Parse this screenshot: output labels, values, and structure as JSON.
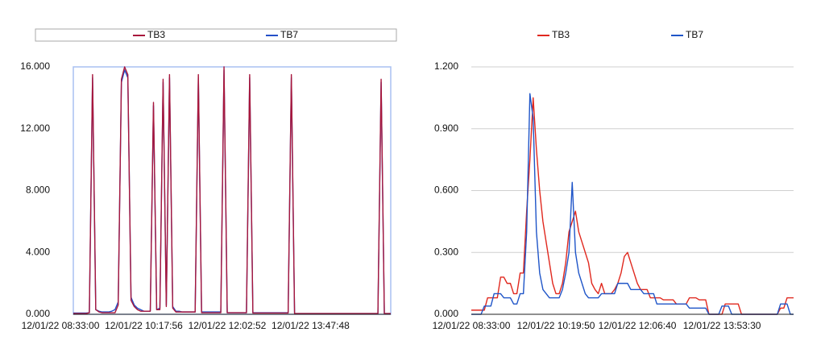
{
  "chart_data": [
    {
      "type": "line",
      "grid": false,
      "frame": true,
      "legend": "top",
      "categories": [
        "12/01/22 08:33:00",
        null,
        null,
        null,
        null,
        null,
        null,
        null,
        null,
        null,
        null,
        null,
        null,
        null,
        null,
        null,
        null,
        null,
        null,
        null,
        null,
        null,
        null,
        null,
        null,
        null,
        "12/01/22 10:17:56",
        null,
        null,
        null,
        null,
        null,
        null,
        null,
        null,
        null,
        null,
        null,
        null,
        null,
        null,
        null,
        null,
        null,
        null,
        null,
        null,
        null,
        null,
        null,
        null,
        null,
        "12/01/22 12:02:52",
        null,
        null,
        null,
        null,
        null,
        null,
        null,
        null,
        null,
        null,
        null,
        null,
        null,
        null,
        null,
        null,
        null,
        null,
        null,
        null,
        null,
        null,
        null,
        null,
        null,
        "12/01/22 13:47:48",
        null,
        null,
        null,
        null,
        null,
        null,
        null,
        null,
        null,
        null,
        null,
        null,
        null,
        null,
        null,
        null,
        null,
        null,
        null,
        null,
        null
      ],
      "ylim": [
        0,
        16
      ],
      "yticks": [
        {
          "value": 0,
          "label": "0.000"
        },
        {
          "value": 4,
          "label": "4.000"
        },
        {
          "value": 8,
          "label": "8.000"
        },
        {
          "value": 12,
          "label": "12.000"
        },
        {
          "value": 16,
          "label": "16.000"
        }
      ],
      "series": [
        {
          "name": "TB7",
          "color": "#2450c8",
          "values": [
            0.08,
            0.08,
            0.08,
            0.08,
            0.08,
            0.1,
            15.3,
            0.3,
            0.2,
            0.15,
            0.15,
            0.15,
            0.2,
            0.3,
            0.8,
            15,
            15.8,
            15.3,
            1.1,
            0.6,
            0.4,
            0.3,
            0.2,
            0.2,
            0.2,
            13.5,
            0.3,
            0.4,
            15,
            0.6,
            15.3,
            0.5,
            0.2,
            0.2,
            0.15,
            0.15,
            0.15,
            0.15,
            0.15,
            15.3,
            0.15,
            0.15,
            0.15,
            0.15,
            0.15,
            0.15,
            0.15,
            15.8,
            0.1,
            0.1,
            0.1,
            0.1,
            0.1,
            0.1,
            0.1,
            15.3,
            0.1,
            0.1,
            0.1,
            0.1,
            0.1,
            0.1,
            0.1,
            0.1,
            0.1,
            0.1,
            0.1,
            0.1,
            15.3,
            0.05,
            0.05,
            0.05,
            0.05,
            0.05,
            0.05,
            0.05,
            0.05,
            0.05,
            0.05,
            0.05,
            0.05,
            0.05,
            0.05,
            0.05,
            0.05,
            0.05,
            0.05,
            0.05,
            0.05,
            0.05,
            0.05,
            0.05,
            0.05,
            0.05,
            0.05,
            0.05,
            15,
            0.05,
            0.05,
            0.05
          ]
        },
        {
          "name": "TB3",
          "color": "#a8173c",
          "values": [
            0.05,
            0.05,
            0.05,
            0.05,
            0.05,
            0.1,
            15.5,
            0.3,
            0.15,
            0.1,
            0.1,
            0.1,
            0.1,
            0.1,
            0.6,
            15.2,
            16,
            15.5,
            0.9,
            0.5,
            0.3,
            0.2,
            0.2,
            0.2,
            0.2,
            13.7,
            0.3,
            0.3,
            15.2,
            0.5,
            15.5,
            0.4,
            0.15,
            0.15,
            0.15,
            0.15,
            0.15,
            0.15,
            0.15,
            15.5,
            0.1,
            0.1,
            0.1,
            0.1,
            0.1,
            0.1,
            0.1,
            16,
            0.1,
            0.1,
            0.1,
            0.1,
            0.1,
            0.1,
            0.1,
            15.5,
            0.08,
            0.08,
            0.08,
            0.08,
            0.08,
            0.08,
            0.08,
            0.08,
            0.08,
            0.08,
            0.08,
            0.08,
            15.5,
            0.05,
            0.05,
            0.05,
            0.05,
            0.05,
            0.05,
            0.05,
            0.05,
            0.05,
            0.05,
            0.05,
            0.05,
            0.05,
            0.05,
            0.05,
            0.05,
            0.05,
            0.05,
            0.05,
            0.05,
            0.05,
            0.05,
            0.05,
            0.05,
            0.05,
            0.05,
            0.05,
            15.2,
            0.05,
            0.05,
            0.05
          ]
        }
      ]
    },
    {
      "type": "line",
      "grid": true,
      "frame": false,
      "legend": "top",
      "categories": [
        "12/01/22 08:33:00",
        null,
        null,
        null,
        null,
        null,
        null,
        null,
        null,
        null,
        null,
        null,
        null,
        null,
        null,
        null,
        null,
        null,
        null,
        null,
        null,
        null,
        null,
        null,
        null,
        null,
        "12/01/22 10:19:50",
        null,
        null,
        null,
        null,
        null,
        null,
        null,
        null,
        null,
        null,
        null,
        null,
        null,
        null,
        null,
        null,
        null,
        null,
        null,
        null,
        null,
        null,
        null,
        null,
        "12/01/22 12:06:40",
        null,
        null,
        null,
        null,
        null,
        null,
        null,
        null,
        null,
        null,
        null,
        null,
        null,
        null,
        null,
        null,
        null,
        null,
        null,
        null,
        null,
        null,
        null,
        null,
        null,
        "12/01/22 13:53:30",
        null,
        null,
        null,
        null,
        null,
        null,
        null,
        null,
        null,
        null,
        null,
        null,
        null,
        null,
        null,
        null,
        null,
        null,
        null,
        null,
        null,
        null
      ],
      "ylim": [
        0,
        1.2
      ],
      "yticks": [
        {
          "value": 0,
          "label": "0.000"
        },
        {
          "value": 0.3,
          "label": "0.300"
        },
        {
          "value": 0.6,
          "label": "0.600"
        },
        {
          "value": 0.9,
          "label": "0.900"
        },
        {
          "value": 1.2,
          "label": "1.200"
        }
      ],
      "series": [
        {
          "name": "TB3",
          "color": "#e0281e",
          "values": [
            0.02,
            0.02,
            0.02,
            0.02,
            0.02,
            0.08,
            0.08,
            0.08,
            0.08,
            0.18,
            0.18,
            0.15,
            0.15,
            0.1,
            0.1,
            0.2,
            0.2,
            0.5,
            0.75,
            1.05,
            0.8,
            0.6,
            0.45,
            0.35,
            0.25,
            0.15,
            0.1,
            0.1,
            0.15,
            0.25,
            0.4,
            0.45,
            0.5,
            0.4,
            0.35,
            0.3,
            0.25,
            0.15,
            0.12,
            0.1,
            0.15,
            0.1,
            0.1,
            0.1,
            0.12,
            0.15,
            0.2,
            0.28,
            0.3,
            0.25,
            0.2,
            0.15,
            0.12,
            0.12,
            0.12,
            0.08,
            0.08,
            0.08,
            0.08,
            0.07,
            0.07,
            0.07,
            0.07,
            0.05,
            0.05,
            0.05,
            0.05,
            0.08,
            0.08,
            0.08,
            0.07,
            0.07,
            0.07,
            0,
            0,
            0,
            0,
            0,
            0.05,
            0.05,
            0.05,
            0.05,
            0.05,
            0,
            0,
            0,
            0,
            0,
            0,
            0,
            0,
            0,
            0,
            0,
            0,
            0.03,
            0.03,
            0.08,
            0.08,
            0.08
          ]
        },
        {
          "name": "TB7",
          "color": "#1f55c8",
          "values": [
            0,
            0,
            0,
            0,
            0.04,
            0.04,
            0.04,
            0.1,
            0.1,
            0.1,
            0.08,
            0.08,
            0.08,
            0.05,
            0.05,
            0.1,
            0.1,
            0.4,
            1.07,
            0.95,
            0.4,
            0.2,
            0.12,
            0.1,
            0.08,
            0.08,
            0.08,
            0.08,
            0.12,
            0.2,
            0.3,
            0.64,
            0.3,
            0.2,
            0.15,
            0.1,
            0.08,
            0.08,
            0.08,
            0.08,
            0.1,
            0.1,
            0.1,
            0.1,
            0.1,
            0.15,
            0.15,
            0.15,
            0.15,
            0.12,
            0.12,
            0.12,
            0.12,
            0.1,
            0.1,
            0.1,
            0.1,
            0.05,
            0.05,
            0.05,
            0.05,
            0.05,
            0.05,
            0.05,
            0.05,
            0.05,
            0.05,
            0.03,
            0.03,
            0.03,
            0.03,
            0.03,
            0.03,
            0,
            0,
            0,
            0,
            0.04,
            0.04,
            0.04,
            0,
            0,
            0,
            0,
            0,
            0,
            0,
            0,
            0,
            0,
            0,
            0,
            0,
            0,
            0,
            0.05,
            0.05,
            0.05,
            0,
            0
          ]
        }
      ]
    }
  ]
}
